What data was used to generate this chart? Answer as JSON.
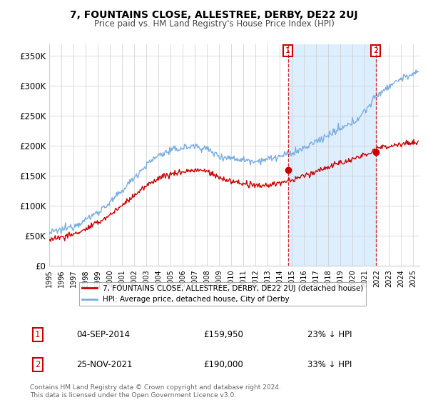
{
  "title": "7, FOUNTAINS CLOSE, ALLESTREE, DERBY, DE22 2UJ",
  "subtitle": "Price paid vs. HM Land Registry's House Price Index (HPI)",
  "legend_line1": "7, FOUNTAINS CLOSE, ALLESTREE, DERBY, DE22 2UJ (detached house)",
  "legend_line2": "HPI: Average price, detached house, City of Derby",
  "annotation1_date": "04-SEP-2014",
  "annotation1_price": "£159,950",
  "annotation1_hpi": "23% ↓ HPI",
  "annotation2_date": "25-NOV-2021",
  "annotation2_price": "£190,000",
  "annotation2_hpi": "33% ↓ HPI",
  "footnote": "Contains HM Land Registry data © Crown copyright and database right 2024.\nThis data is licensed under the Open Government Licence v3.0.",
  "red_color": "#cc0000",
  "blue_color": "#7aade0",
  "shade_color": "#ddeeff",
  "background_color": "#ffffff",
  "grid_color": "#cccccc",
  "ylim": [
    0,
    370000
  ],
  "yticks": [
    0,
    50000,
    100000,
    150000,
    200000,
    250000,
    300000,
    350000
  ],
  "ytick_labels": [
    "£0",
    "£50K",
    "£100K",
    "£150K",
    "£200K",
    "£250K",
    "£300K",
    "£350K"
  ],
  "sale1_year": 2014.67,
  "sale1_price": 159950,
  "sale2_year": 2021.9,
  "sale2_price": 190000,
  "xlim_left": 1995,
  "xlim_right": 2025.5
}
